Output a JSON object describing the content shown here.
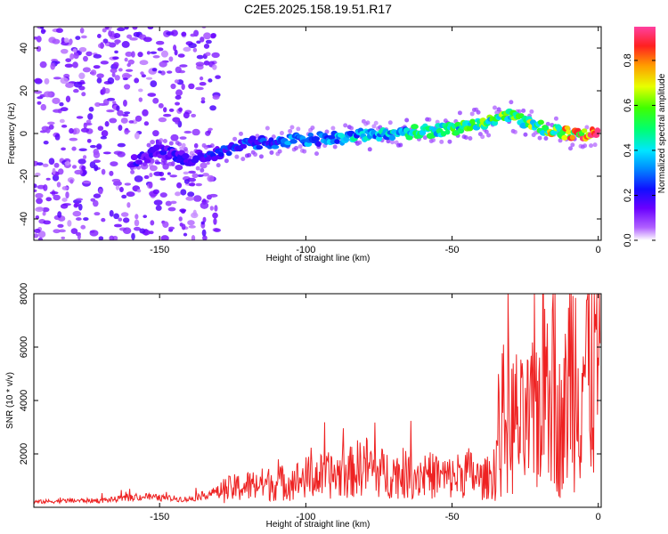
{
  "title": "C2E5.2025.158.19.51.R17",
  "chart_data": [
    {
      "type": "heatmap",
      "name": "spectrogram",
      "xlabel": "Height of straight line (km)",
      "ylabel": "Frequency (Hz)",
      "xlim": [
        -193,
        1
      ],
      "ylim": [
        -50,
        50
      ],
      "xticks": [
        -150,
        -100,
        -50,
        0
      ],
      "xtick_labels": [
        "-150",
        "-100",
        "-50",
        "0"
      ],
      "yticks": [
        -40,
        -20,
        0,
        20,
        40
      ],
      "ytick_labels": [
        "-40",
        "-20",
        "0",
        "20",
        "40"
      ],
      "colorbar": {
        "label": "Normalized spectral amplitude",
        "range": [
          0,
          0.95
        ],
        "ticks": [
          0.0,
          0.2,
          0.4,
          0.6,
          0.8
        ],
        "tick_labels": [
          "0.0",
          "0.2",
          "0.4",
          "0.6",
          "0.8"
        ],
        "colors": [
          "#ffffff",
          "#8a00ff",
          "#1010ff",
          "#00e0ff",
          "#00ff40",
          "#e8ff00",
          "#ff9a00",
          "#ff2020",
          "#ff50a0"
        ]
      },
      "signal_trace": {
        "x": [
          -160,
          -150,
          -140,
          -130,
          -120,
          -110,
          -100,
          -90,
          -80,
          -70,
          -60,
          -50,
          -40,
          -30,
          -20,
          -10,
          0
        ],
        "frequency": [
          -14,
          -8,
          -12,
          -9,
          -5,
          -4,
          -3,
          -2,
          -1,
          0,
          1,
          2,
          5,
          8,
          3,
          0,
          0
        ],
        "amplitude": [
          0.2,
          0.2,
          0.22,
          0.25,
          0.3,
          0.33,
          0.35,
          0.4,
          0.45,
          0.47,
          0.5,
          0.55,
          0.6,
          0.62,
          0.7,
          0.85,
          0.95
        ]
      },
      "noise_region": {
        "x_from": -193,
        "x_to": -130,
        "amplitude": 0.1
      }
    },
    {
      "type": "line",
      "name": "snr",
      "xlabel": "Height of straight line (km)",
      "ylabel": "SNR (10 * v/v)",
      "xlim": [
        -193,
        1
      ],
      "ylim": [
        0,
        8000
      ],
      "xticks": [
        -150,
        -100,
        -50,
        0
      ],
      "xtick_labels": [
        "-150",
        "-100",
        "-50",
        "0"
      ],
      "yticks": [
        2000,
        4000,
        6000,
        8000
      ],
      "ytick_labels": [
        "2000",
        "4000",
        "6000",
        "8000"
      ],
      "color": "#ee2222",
      "series": [
        {
          "name": "SNR",
          "x": [
            -193,
            -180,
            -170,
            -160,
            -155,
            -150,
            -140,
            -135,
            -130,
            -125,
            -120,
            -115,
            -110,
            -105,
            -100,
            -95,
            -90,
            -85,
            -80,
            -75,
            -70,
            -65,
            -60,
            -55,
            -50,
            -45,
            -40,
            -36,
            -34,
            -32,
            -30,
            -28,
            -26,
            -24,
            -22,
            -20,
            -18,
            -16,
            -14,
            -12,
            -10,
            -8,
            -6,
            -4,
            -2,
            0
          ],
          "y": [
            200,
            250,
            250,
            350,
            400,
            350,
            300,
            450,
            600,
            700,
            800,
            850,
            900,
            950,
            1100,
            1150,
            1200,
            1300,
            1600,
            1300,
            1250,
            1200,
            1250,
            1150,
            1100,
            1350,
            1000,
            1200,
            2500,
            3500,
            3100,
            3200,
            2900,
            3100,
            3300,
            4200,
            5000,
            7000,
            3200,
            2800,
            5200,
            5300,
            5200,
            5400,
            5500,
            5600
          ]
        }
      ]
    }
  ]
}
